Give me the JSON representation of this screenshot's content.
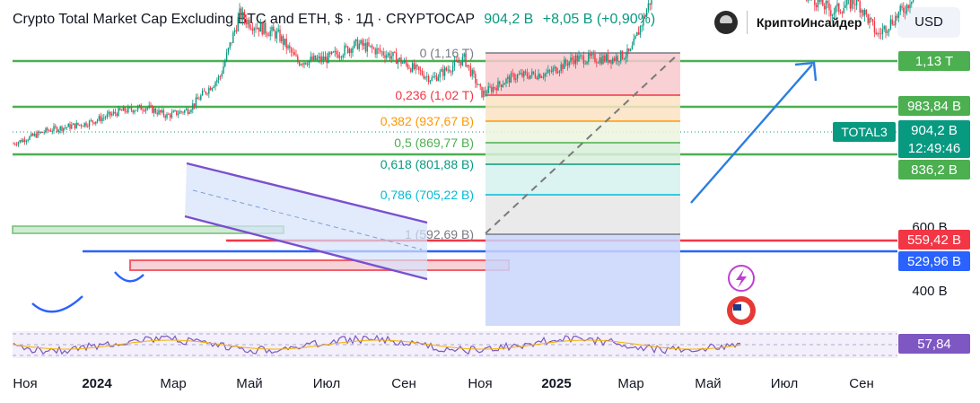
{
  "header": {
    "title": "Crypto Total Market Cap Excluding BTC and ETH, $ · 1Д · CRYPTOCAP",
    "price": "904,2 B",
    "change": "+8,05 B (+0,90%)",
    "brand": "КриптоИнсайдер",
    "currency": "USD"
  },
  "chart_data": {
    "type": "candlestick",
    "symbol": "TOTAL3",
    "title": "Crypto Total Market Cap Excluding BTC and ETH, $ · 1Д · CRYPTOCAP",
    "last_value": 904.2,
    "unit": "B",
    "x_ticks": [
      "Ноя",
      "2024",
      "Мар",
      "Май",
      "Июл",
      "Сен",
      "Ноя",
      "2025",
      "Мар",
      "Май",
      "Июл",
      "Сен"
    ],
    "y_ticks": [
      "600 B",
      "400 B"
    ],
    "ylim": [
      300,
      1200
    ],
    "price_path": [
      [
        "2023-10-20",
        330
      ],
      [
        "2023-11-10",
        375
      ],
      [
        "2023-12-05",
        400
      ],
      [
        "2023-12-25",
        440
      ],
      [
        "2024-01-10",
        455
      ],
      [
        "2024-01-23",
        425
      ],
      [
        "2024-02-05",
        445
      ],
      [
        "2024-02-25",
        560
      ],
      [
        "2024-03-08",
        770
      ],
      [
        "2024-03-15",
        740
      ],
      [
        "2024-04-01",
        700
      ],
      [
        "2024-04-13",
        610
      ],
      [
        "2024-05-01",
        620
      ],
      [
        "2024-05-20",
        670
      ],
      [
        "2024-06-10",
        630
      ],
      [
        "2024-07-05",
        550
      ],
      [
        "2024-07-25",
        620
      ],
      [
        "2024-08-05",
        500
      ],
      [
        "2024-08-25",
        560
      ],
      [
        "2024-09-15",
        570
      ],
      [
        "2024-10-01",
        620
      ],
      [
        "2024-10-25",
        620
      ],
      [
        "2024-11-05",
        640
      ],
      [
        "2024-11-20",
        860
      ],
      [
        "2024-12-05",
        1150
      ],
      [
        "2024-12-20",
        950
      ],
      [
        "2025-01-05",
        1110
      ],
      [
        "2025-01-20",
        1060
      ],
      [
        "2025-02-05",
        900
      ],
      [
        "2025-02-20",
        850
      ],
      [
        "2025-03-10",
        780
      ],
      [
        "2025-03-25",
        820
      ],
      [
        "2025-04-07",
        700
      ],
      [
        "2025-04-25",
        800
      ],
      [
        "2025-05-10",
        960
      ],
      [
        "2025-05-25",
        940
      ],
      [
        "2025-06-06",
        904
      ]
    ],
    "fibonacci": [
      {
        "ratio": "0",
        "value": "1,16 T"
      },
      {
        "ratio": "0,236",
        "value": "1,02 T"
      },
      {
        "ratio": "0,382",
        "value": "937,67 B"
      },
      {
        "ratio": "0,5",
        "value": "869,77 B"
      },
      {
        "ratio": "0,618",
        "value": "801,88 B"
      },
      {
        "ratio": "0,786",
        "value": "705,22 B"
      },
      {
        "ratio": "1",
        "value": "592,69 B"
      }
    ],
    "levels": [
      {
        "label": "1,13 T",
        "color": "#4caf50"
      },
      {
        "label": "983,84 B",
        "color": "#4caf50"
      },
      {
        "label": "836,2 B",
        "color": "#4caf50"
      },
      {
        "label": "559,42 B",
        "color": "#f23645"
      },
      {
        "label": "529,96 B",
        "color": "#2962ff"
      }
    ],
    "symbol_label": "TOTAL3",
    "last_price_label": "904,2 B",
    "countdown": "12:49:46",
    "rsi": {
      "value": "57,84",
      "color": "#7e57c2"
    }
  },
  "colors": {
    "up": "#089981",
    "down": "#f23645",
    "accent_blue": "#2962ff",
    "green_level": "#4caf50",
    "rsi": "#7e57c2"
  }
}
